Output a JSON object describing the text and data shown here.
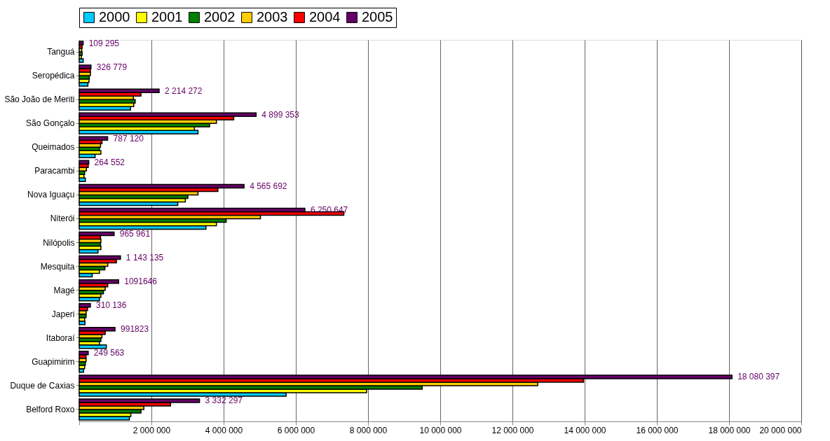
{
  "chart_data": {
    "type": "bar",
    "orientation": "horizontal",
    "categories": [
      "Tanguá",
      "Seropédica",
      "São João de Meriti",
      "São Gonçalo",
      "Queimados",
      "Paracambi",
      "Nova Iguaçu",
      "Niterói",
      "Nilópolis",
      "Mesquita",
      "Magé",
      "Japeri",
      "Itaboraí",
      "Guapimirim",
      "Duque de Caxias",
      "Belford Roxo"
    ],
    "series": [
      {
        "name": "2000",
        "color": "#00ccff",
        "values": [
          110000,
          240000,
          1420000,
          3290000,
          440000,
          170000,
          2730000,
          3510000,
          520000,
          360000,
          560000,
          160000,
          750000,
          120000,
          5730000,
          1390000
        ]
      },
      {
        "name": "2001",
        "color": "#ffff00",
        "values": [
          60000,
          270000,
          1510000,
          3190000,
          600000,
          130000,
          2940000,
          3800000,
          600000,
          560000,
          600000,
          150000,
          560000,
          150000,
          7960000,
          1430000
        ]
      },
      {
        "name": "2002",
        "color": "#008000",
        "values": [
          80000,
          280000,
          1550000,
          3610000,
          560000,
          150000,
          3010000,
          4070000,
          590000,
          710000,
          670000,
          190000,
          600000,
          170000,
          9500000,
          1710000
        ]
      },
      {
        "name": "2003",
        "color": "#ffcc00",
        "values": [
          70000,
          310000,
          1500000,
          3800000,
          590000,
          200000,
          3290000,
          5020000,
          600000,
          790000,
          720000,
          190000,
          630000,
          190000,
          12700000,
          1790000
        ]
      },
      {
        "name": "2004",
        "color": "#ff0000",
        "values": [
          80000,
          310000,
          1710000,
          4280000,
          630000,
          250000,
          3840000,
          7330000,
          590000,
          1030000,
          790000,
          230000,
          720000,
          190000,
          13970000,
          2530000
        ]
      },
      {
        "name": "2005",
        "color": "#660066",
        "values": [
          109295,
          326779,
          2214272,
          4899353,
          787120,
          264552,
          4565692,
          6250647,
          965961,
          1143135,
          1091646,
          310136,
          991823,
          249563,
          18080397,
          3332297
        ],
        "value_labels": [
          "109 295",
          "326 779",
          "2 214 272",
          "4 899 353",
          "787 120",
          "264 552",
          "4 565 692",
          "6 250 647",
          "965 961",
          "1 143 135",
          "1091646",
          "310 136",
          "991823",
          "249 563",
          "18 080 397",
          "3 332 297"
        ]
      }
    ],
    "xlim": [
      0,
      20000000
    ],
    "xticks": [
      {
        "value": 0,
        "label": null
      },
      {
        "value": 2000000,
        "label": "2 000 000"
      },
      {
        "value": 4000000,
        "label": "4 000 000"
      },
      {
        "value": 6000000,
        "label": "6 000 000"
      },
      {
        "value": 8000000,
        "label": "8 000 000"
      },
      {
        "value": 10000000,
        "label": "10 000 000"
      },
      {
        "value": 12000000,
        "label": "12 000 000"
      },
      {
        "value": 14000000,
        "label": "14 000 000"
      },
      {
        "value": 16000000,
        "label": "16 000 000"
      },
      {
        "value": 18000000,
        "label": "18 000 000"
      },
      {
        "value": 20000000,
        "label": "20 000 000"
      }
    ],
    "grid": "x",
    "legend": "top"
  }
}
